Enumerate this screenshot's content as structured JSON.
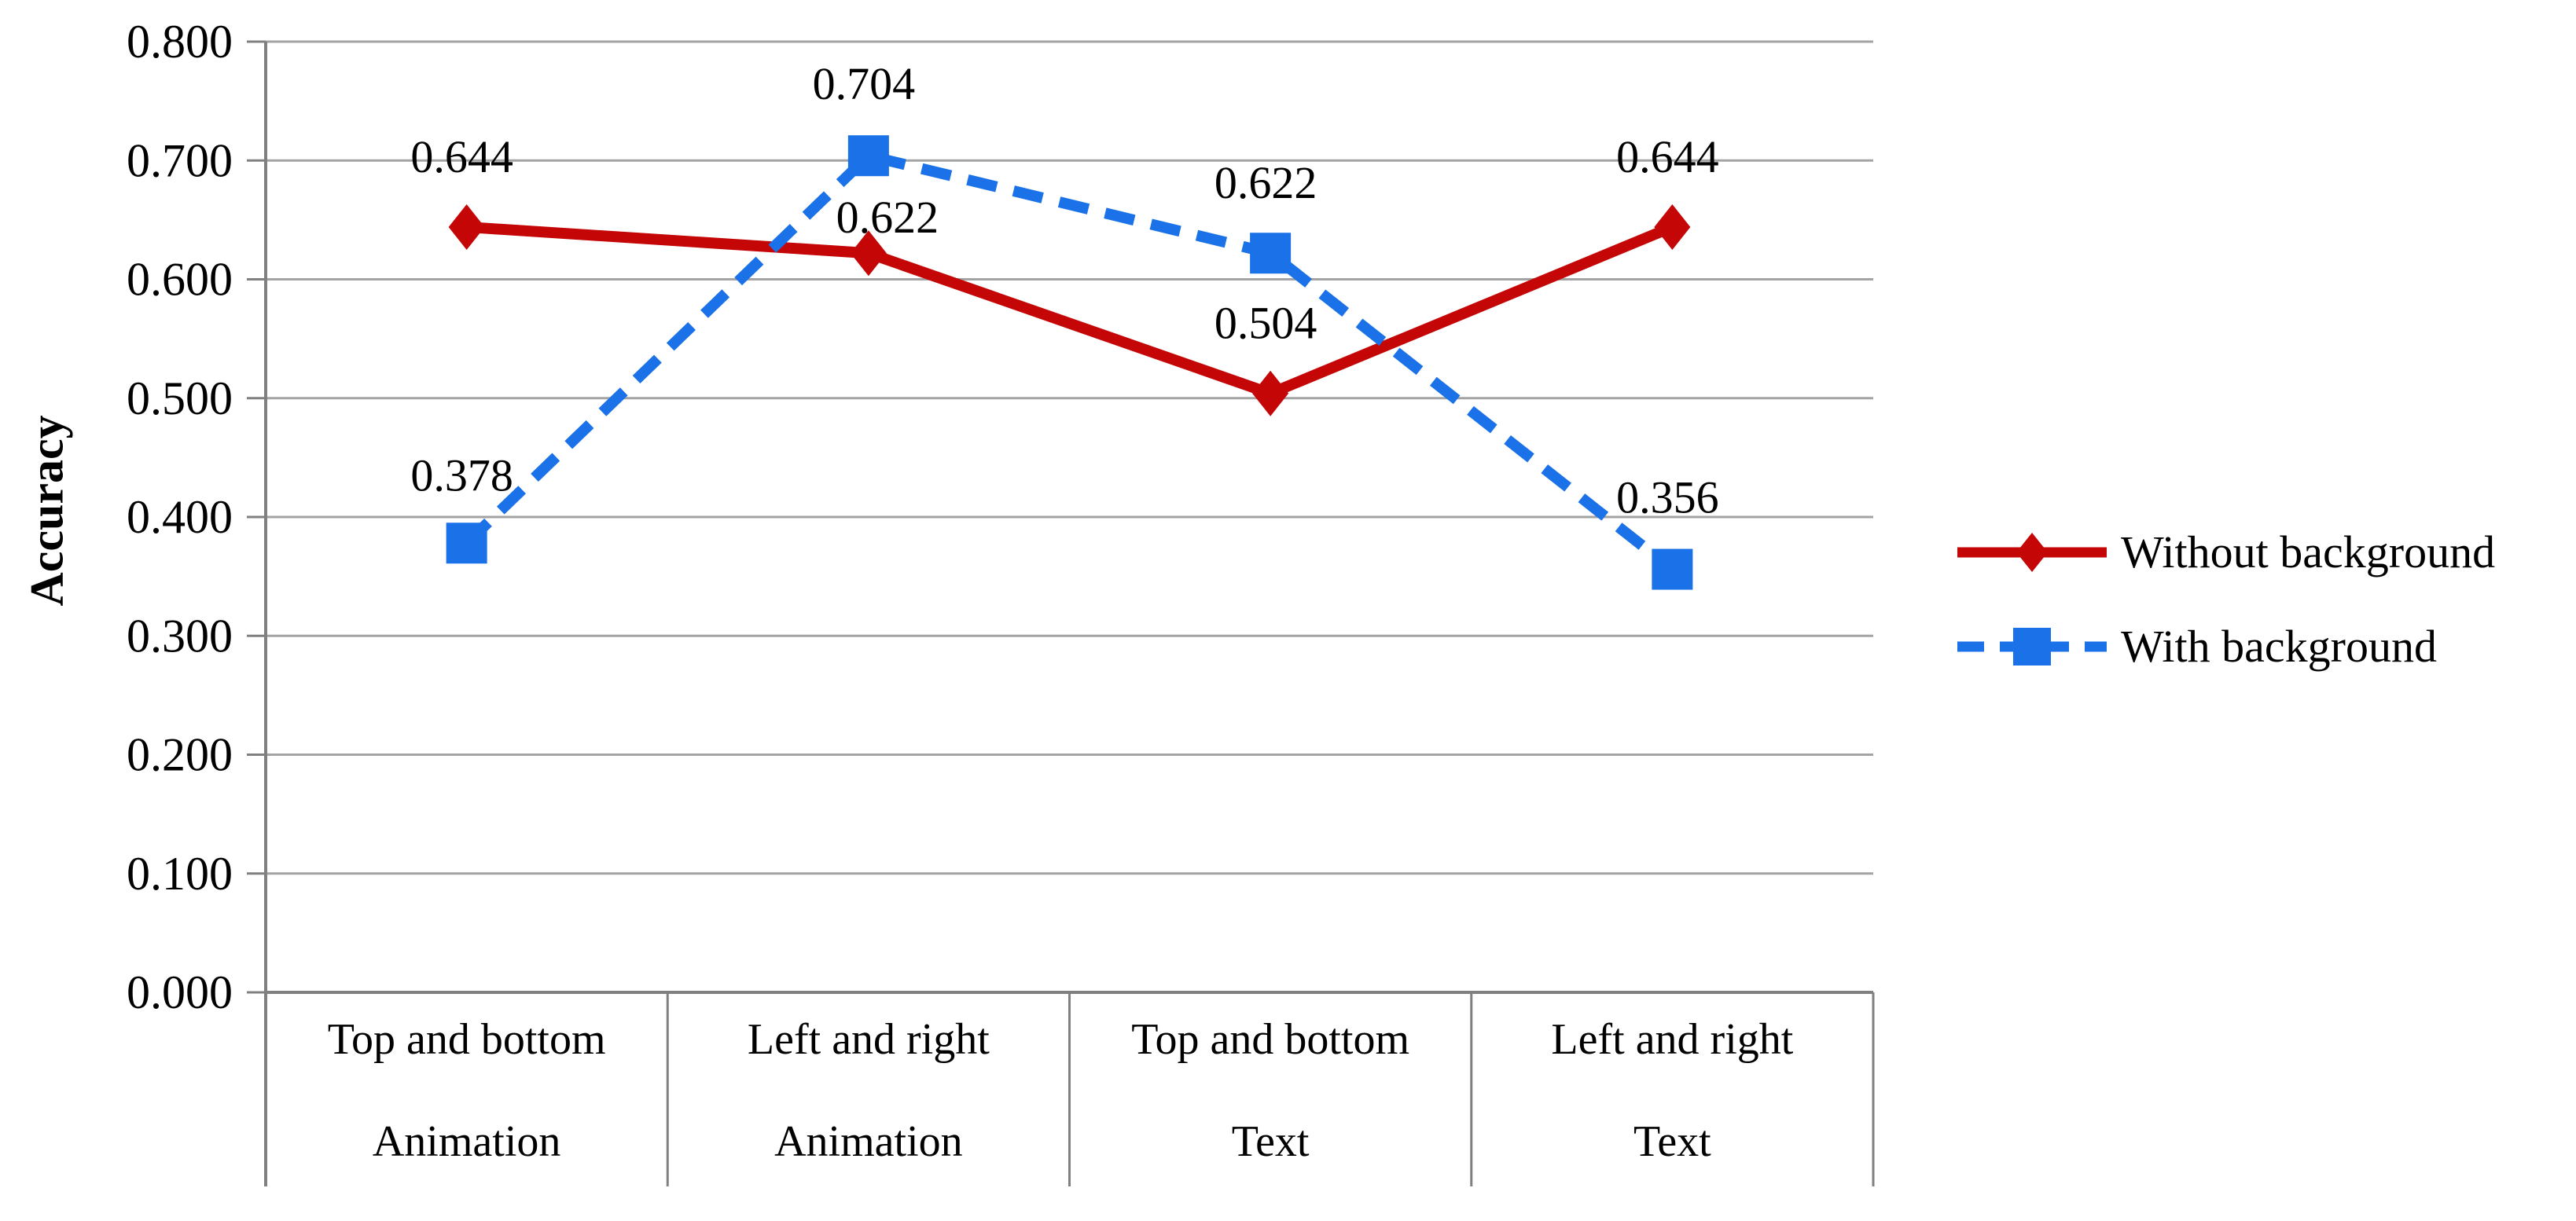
{
  "chart_data": {
    "type": "line",
    "title": "",
    "xlabel": "",
    "ylabel": "Accuracy",
    "categories": [
      {
        "line1": "Top and bottom",
        "line2": "Animation"
      },
      {
        "line1": "Left and right",
        "line2": "Animation"
      },
      {
        "line1": "Top and bottom",
        "line2": "Text"
      },
      {
        "line1": "Left and right",
        "line2": "Text"
      }
    ],
    "series": [
      {
        "name": "Without background",
        "values": [
          0.644,
          0.622,
          0.504,
          0.644
        ],
        "labels": [
          "0.644",
          "0.622",
          "0.504",
          "0.644"
        ],
        "color": "#c40606",
        "marker": "diamond",
        "line_style": "solid"
      },
      {
        "name": "With background",
        "values": [
          0.378,
          0.704,
          0.622,
          0.356
        ],
        "labels": [
          "0.378",
          "0.704",
          "0.622",
          "0.356"
        ],
        "color": "#1b72e8",
        "marker": "square",
        "line_style": "dashed"
      }
    ],
    "ylim": [
      0.0,
      0.8
    ],
    "ytick_step": 0.1,
    "yticks": [
      "0.000",
      "0.100",
      "0.200",
      "0.300",
      "0.400",
      "0.500",
      "0.600",
      "0.700",
      "0.800"
    ],
    "grid": "horizontal",
    "legend_position": "right",
    "colors": {
      "grid": "#a3a3a3",
      "axis": "#808080",
      "label_text": "#000000"
    }
  }
}
